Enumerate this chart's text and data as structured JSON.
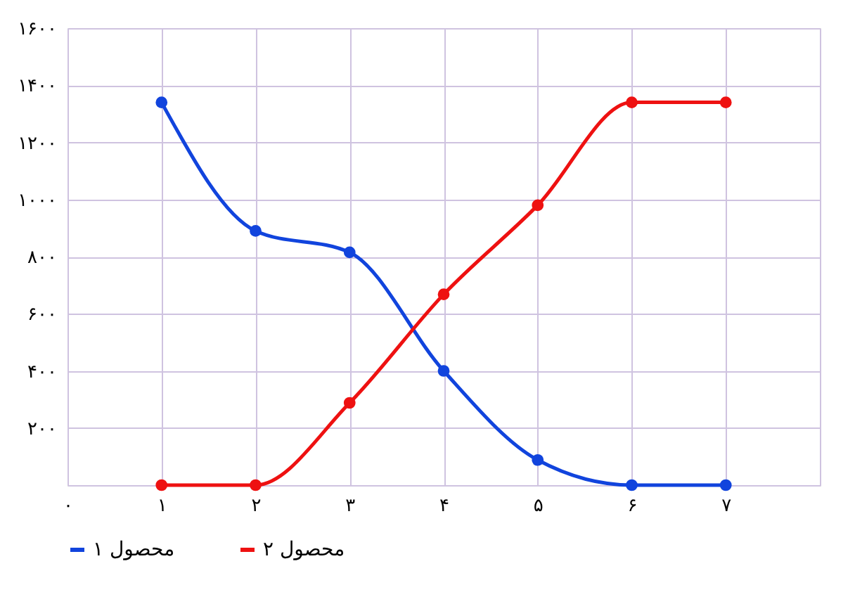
{
  "chart_data": {
    "type": "line",
    "x": [
      1,
      2,
      3,
      4,
      5,
      6,
      7
    ],
    "series": [
      {
        "name": "محصول ۱",
        "color": "#1144dd",
        "values": [
          1340,
          890,
          815,
          400,
          88,
          0,
          0
        ]
      },
      {
        "name": "محصول ۲",
        "color": "#ee1111",
        "values": [
          0,
          0,
          288,
          668,
          980,
          1340,
          1340
        ]
      }
    ],
    "xlim": [
      0,
      8
    ],
    "xticks": [
      {
        "value": 0,
        "label": "۰"
      },
      {
        "value": 1,
        "label": "۱"
      },
      {
        "value": 2,
        "label": "۲"
      },
      {
        "value": 3,
        "label": "۳"
      },
      {
        "value": 4,
        "label": "۴"
      },
      {
        "value": 5,
        "label": "۵"
      },
      {
        "value": 6,
        "label": "۶"
      },
      {
        "value": 7,
        "label": "۷"
      },
      {
        "value": 8,
        "label": null
      }
    ],
    "ylim": [
      0,
      1600
    ],
    "yticks": [
      {
        "value": 0,
        "label": null
      },
      {
        "value": 200,
        "label": "۲۰۰"
      },
      {
        "value": 400,
        "label": "۴۰۰"
      },
      {
        "value": 600,
        "label": "۶۰۰"
      },
      {
        "value": 800,
        "label": "۸۰۰"
      },
      {
        "value": 1000,
        "label": "۱۰۰۰"
      },
      {
        "value": 1200,
        "label": "۱۲۰۰"
      },
      {
        "value": 1400,
        "label": "۱۴۰۰"
      },
      {
        "value": 1600,
        "label": "۱۶۰۰"
      }
    ],
    "grid": true,
    "legend": "bottom",
    "marker": "circle",
    "line_style": "solid"
  }
}
